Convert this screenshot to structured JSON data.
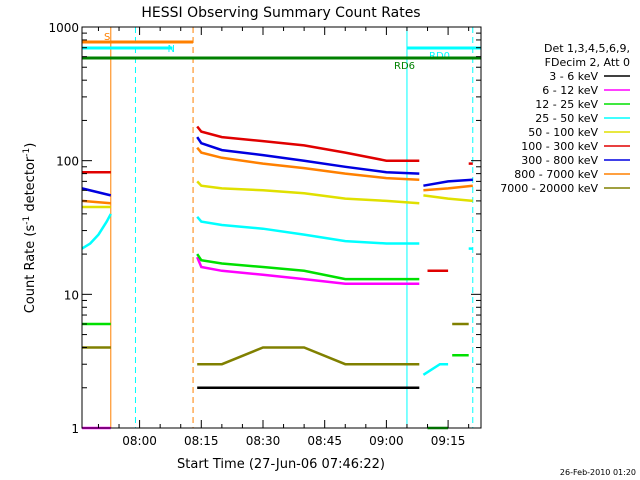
{
  "chart_data": {
    "type": "line",
    "title": "HESSI Observing Summary Count Rates",
    "xlabel": "Start Time (27-Jun-06 07:46:22)",
    "ylabel_main": "Count Rate (s",
    "ylabel_sup1": "-1",
    "ylabel_mid": " detector",
    "ylabel_sup2": "-1",
    "ylabel_end": ")",
    "yscale": "log",
    "ylim": [
      1,
      1000
    ],
    "xlim": [
      "07:46",
      "09:23"
    ],
    "y_ticks": [
      {
        "v": 1,
        "label": "1"
      },
      {
        "v": 10,
        "label": "10"
      },
      {
        "v": 100,
        "label": "100"
      },
      {
        "v": 1000,
        "label": "1000"
      }
    ],
    "x_ticks": [
      {
        "v": "08:00",
        "label": "08:00"
      },
      {
        "v": "08:15",
        "label": "08:15"
      },
      {
        "v": "08:30",
        "label": "08:30"
      },
      {
        "v": "08:45",
        "label": "08:45"
      },
      {
        "v": "09:00",
        "label": "09:00"
      },
      {
        "v": "09:15",
        "label": "09:15"
      }
    ],
    "legend_header": [
      "Det 1,3,4,5,6,9,",
      "FDecim 2, Att 0"
    ],
    "legend": [
      {
        "label": "3 - 6 keV",
        "color": "#000000"
      },
      {
        "label": "6 - 12 keV",
        "color": "#ff00ff"
      },
      {
        "label": "12 - 25 keV",
        "color": "#00e000"
      },
      {
        "label": "25 - 50 keV",
        "color": "#00ffff"
      },
      {
        "label": "50 - 100 keV",
        "color": "#e0e000"
      },
      {
        "label": "100 - 300 keV",
        "color": "#e00000"
      },
      {
        "label": "300 - 800 keV",
        "color": "#0000e0"
      },
      {
        "label": "800 - 7000 keV",
        "color": "#ff8000"
      },
      {
        "label": "7000 - 20000 keV",
        "color": "#808000"
      }
    ],
    "flags": [
      {
        "label": "S",
        "color": "#ff8000",
        "start": "07:46",
        "end": "08:13"
      },
      {
        "label": "N",
        "color": "#00ffff",
        "start": "07:46",
        "end": "08:08"
      },
      {
        "label": "RD0",
        "color": "#00ffff",
        "start": "09:05",
        "end": "09:23"
      },
      {
        "label": "RD6",
        "color": "#008000",
        "start": "07:46",
        "end": "09:23"
      }
    ],
    "vlines": [
      {
        "t": "07:53",
        "color": "#ff8000",
        "dashed": false
      },
      {
        "t": "07:59",
        "color": "#00ffff",
        "dashed": true
      },
      {
        "t": "08:13",
        "color": "#ff8000",
        "dashed": true
      },
      {
        "t": "09:05",
        "color": "#00ffff",
        "dashed": false
      },
      {
        "t": "09:21",
        "color": "#00ffff",
        "dashed": true
      }
    ],
    "series": [
      {
        "name": "3 - 6 keV",
        "color": "#000000",
        "segments": [
          {
            "x": [
              "08:14",
              "09:08"
            ],
            "y": [
              2,
              2
            ]
          }
        ]
      },
      {
        "name": "6 - 12 keV",
        "color": "#ff00ff",
        "segments": [
          {
            "x": [
              "07:46",
              "07:53"
            ],
            "y": [
              1,
              1
            ]
          },
          {
            "x": [
              "08:14",
              "08:15",
              "08:20",
              "08:30",
              "08:40",
              "08:50",
              "09:00",
              "09:08"
            ],
            "y": [
              19,
              16,
              15,
              14,
              13,
              12,
              12,
              12
            ]
          },
          {
            "x": [
              "09:10",
              "09:15"
            ],
            "y": [
              1,
              1
            ]
          }
        ]
      },
      {
        "name": "12 - 25 keV",
        "color": "#00e000",
        "segments": [
          {
            "x": [
              "07:46",
              "07:53"
            ],
            "y": [
              6,
              6
            ]
          },
          {
            "x": [
              "08:14",
              "08:15",
              "08:20",
              "08:30",
              "08:40",
              "08:50",
              "09:00",
              "09:08"
            ],
            "y": [
              20,
              18,
              17,
              16,
              15,
              13,
              13,
              13
            ]
          },
          {
            "x": [
              "09:10",
              "09:15"
            ],
            "y": [
              1,
              1
            ]
          },
          {
            "x": [
              "09:16",
              "09:20"
            ],
            "y": [
              3.5,
              3.5
            ]
          }
        ]
      },
      {
        "name": "25 - 50 keV",
        "color": "#00ffff",
        "segments": [
          {
            "x": [
              "07:46",
              "07:48",
              "07:50",
              "07:52",
              "07:53"
            ],
            "y": [
              22,
              24,
              28,
              35,
              40
            ]
          },
          {
            "x": [
              "08:14",
              "08:15",
              "08:20",
              "08:30",
              "08:40",
              "08:50",
              "09:00",
              "09:08"
            ],
            "y": [
              38,
              35,
              33,
              31,
              28,
              25,
              24,
              24
            ]
          },
          {
            "x": [
              "09:09",
              "09:13",
              "09:15"
            ],
            "y": [
              2.5,
              3,
              3
            ]
          },
          {
            "x": [
              "09:20",
              "09:21"
            ],
            "y": [
              22,
              22
            ]
          }
        ]
      },
      {
        "name": "50 - 100 keV",
        "color": "#e0e000",
        "segments": [
          {
            "x": [
              "07:46",
              "07:53"
            ],
            "y": [
              45,
              45
            ]
          },
          {
            "x": [
              "08:14",
              "08:15",
              "08:20",
              "08:30",
              "08:40",
              "08:50",
              "09:00",
              "09:08"
            ],
            "y": [
              70,
              65,
              62,
              60,
              57,
              52,
              50,
              48
            ]
          },
          {
            "x": [
              "09:09",
              "09:15",
              "09:21"
            ],
            "y": [
              55,
              52,
              50
            ]
          }
        ]
      },
      {
        "name": "100 - 300 keV",
        "color": "#e00000",
        "segments": [
          {
            "x": [
              "07:46",
              "07:53"
            ],
            "y": [
              82,
              82
            ]
          },
          {
            "x": [
              "08:14",
              "08:15",
              "08:20",
              "08:30",
              "08:40",
              "08:50",
              "09:00",
              "09:08"
            ],
            "y": [
              180,
              165,
              150,
              140,
              130,
              115,
              100,
              100
            ]
          },
          {
            "x": [
              "09:10",
              "09:15"
            ],
            "y": [
              15,
              15
            ]
          },
          {
            "x": [
              "09:20",
              "09:21"
            ],
            "y": [
              95,
              95
            ]
          }
        ]
      },
      {
        "name": "300 - 800 keV",
        "color": "#0000e0",
        "segments": [
          {
            "x": [
              "07:46",
              "07:53"
            ],
            "y": [
              62,
              55
            ]
          },
          {
            "x": [
              "08:14",
              "08:15",
              "08:20",
              "08:30",
              "08:40",
              "08:50",
              "09:00",
              "09:08"
            ],
            "y": [
              150,
              135,
              120,
              110,
              100,
              90,
              82,
              80
            ]
          },
          {
            "x": [
              "09:09",
              "09:15",
              "09:21"
            ],
            "y": [
              65,
              70,
              72
            ]
          }
        ]
      },
      {
        "name": "800 - 7000 keV",
        "color": "#ff8000",
        "segments": [
          {
            "x": [
              "07:46",
              "07:53"
            ],
            "y": [
              50,
              48
            ]
          },
          {
            "x": [
              "08:14",
              "08:15",
              "08:20",
              "08:30",
              "08:40",
              "08:50",
              "09:00",
              "09:08"
            ],
            "y": [
              125,
              115,
              105,
              95,
              88,
              80,
              74,
              72
            ]
          },
          {
            "x": [
              "09:09",
              "09:15",
              "09:21"
            ],
            "y": [
              60,
              62,
              65
            ]
          }
        ]
      },
      {
        "name": "7000 - 20000 keV",
        "color": "#808000",
        "segments": [
          {
            "x": [
              "07:46",
              "07:53"
            ],
            "y": [
              4,
              4
            ]
          },
          {
            "x": [
              "08:14",
              "08:20",
              "08:30",
              "08:40",
              "08:50",
              "09:00",
              "09:08"
            ],
            "y": [
              3,
              3,
              4,
              4,
              3,
              3,
              3
            ]
          },
          {
            "x": [
              "09:16",
              "09:20"
            ],
            "y": [
              6,
              6
            ]
          }
        ]
      }
    ]
  },
  "footer_date": "26-Feb-2010 01:20"
}
